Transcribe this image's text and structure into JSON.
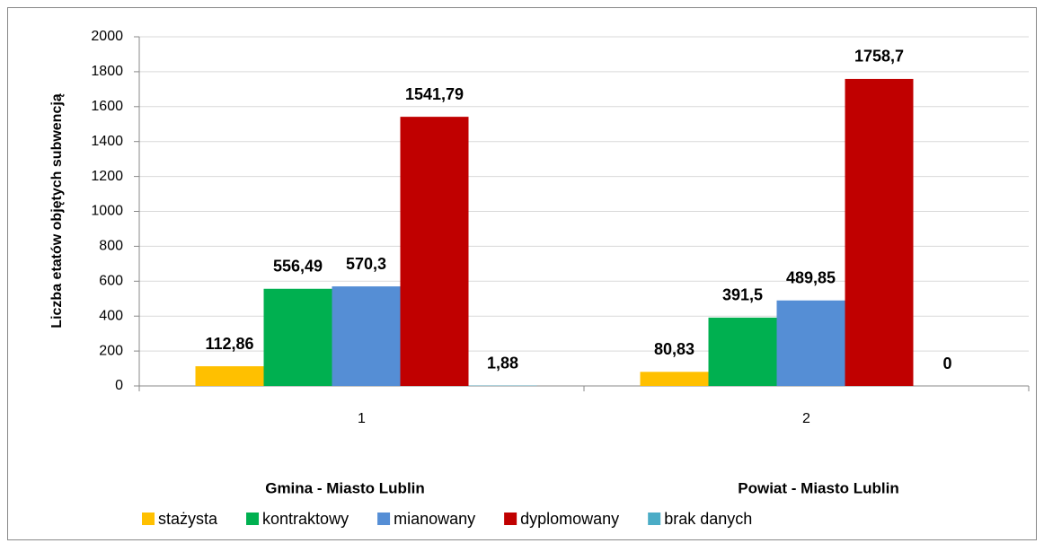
{
  "chart_data": {
    "type": "bar",
    "y_label": "Liczba etatów objętych subwencją",
    "categories": [
      "1",
      "2"
    ],
    "category_groups": [
      "Gmina - Miasto Lublin",
      "Powiat - Miasto Lublin"
    ],
    "series": [
      {
        "name": "stażysta",
        "color": "#ffc000",
        "values": [
          112.86,
          80.83
        ],
        "value_labels": [
          "112,86",
          "80,83"
        ]
      },
      {
        "name": "kontraktowy",
        "color": "#00b050",
        "values": [
          556.49,
          391.5
        ],
        "value_labels": [
          "556,49",
          "391,5"
        ]
      },
      {
        "name": "mianowany",
        "color": "#558ed5",
        "values": [
          570.3,
          489.85
        ],
        "value_labels": [
          "570,3",
          "489,85"
        ]
      },
      {
        "name": "dyplomowany",
        "color": "#c00000",
        "values": [
          1541.79,
          1758.7
        ],
        "value_labels": [
          "1541,79",
          "1758,7"
        ]
      },
      {
        "name": "brak danych",
        "color": "#4bacc6",
        "values": [
          1.88,
          0
        ],
        "value_labels": [
          "1,88",
          "0"
        ]
      }
    ],
    "ylim": [
      0,
      2000
    ],
    "yticks": [
      0,
      200,
      400,
      600,
      800,
      1000,
      1200,
      1400,
      1600,
      1800,
      2000
    ],
    "grid": true,
    "legend": "bottom"
  }
}
